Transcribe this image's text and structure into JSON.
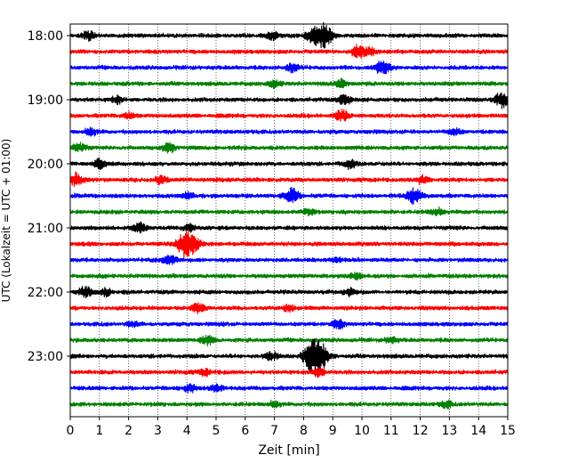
{
  "chart_data": {
    "type": "line",
    "title": "",
    "xlabel": "Zeit  [min]",
    "ylabel": "UTC (Lokalzeit = UTC + 01:00)",
    "xlim": [
      0,
      15
    ],
    "x_ticks": [
      "0",
      "1",
      "2",
      "3",
      "4",
      "5",
      "6",
      "7",
      "8",
      "9",
      "10",
      "11",
      "12",
      "13",
      "14",
      "15"
    ],
    "y_tick_labels": [
      "18:00",
      "19:00",
      "20:00",
      "21:00",
      "22:00",
      "23:00"
    ],
    "grid": "vertical dotted",
    "trace_minutes": 15,
    "colors": [
      "#000000",
      "#ff0000",
      "#0000ff",
      "#008000"
    ],
    "series": [
      {
        "label": "18:00",
        "color": "#000000",
        "events": [
          {
            "t": 8.7,
            "amp": 1.4
          },
          {
            "t": 8.3,
            "amp": 0.8
          },
          {
            "t": 0.6,
            "amp": 0.5
          },
          {
            "t": 6.9,
            "amp": 0.5
          }
        ]
      },
      {
        "label": "18:15",
        "color": "#ff0000",
        "events": [
          {
            "t": 9.9,
            "amp": 0.8
          },
          {
            "t": 10.3,
            "amp": 0.4
          }
        ]
      },
      {
        "label": "18:30",
        "color": "#0000ff",
        "events": [
          {
            "t": 10.7,
            "amp": 0.9
          },
          {
            "t": 7.6,
            "amp": 0.5
          }
        ]
      },
      {
        "label": "18:45",
        "color": "#008000",
        "events": [
          {
            "t": 7.0,
            "amp": 0.4
          },
          {
            "t": 9.3,
            "amp": 0.4
          }
        ]
      },
      {
        "label": "19:00",
        "color": "#000000",
        "events": [
          {
            "t": 14.8,
            "amp": 0.9
          },
          {
            "t": 9.4,
            "amp": 0.6
          },
          {
            "t": 1.6,
            "amp": 0.4
          }
        ]
      },
      {
        "label": "19:15",
        "color": "#ff0000",
        "events": [
          {
            "t": 9.3,
            "amp": 0.7
          },
          {
            "t": 2.0,
            "amp": 0.4
          }
        ]
      },
      {
        "label": "19:30",
        "color": "#0000ff",
        "events": [
          {
            "t": 0.7,
            "amp": 0.4
          },
          {
            "t": 13.2,
            "amp": 0.4
          }
        ]
      },
      {
        "label": "19:45",
        "color": "#008000",
        "events": [
          {
            "t": 0.3,
            "amp": 0.5
          },
          {
            "t": 3.4,
            "amp": 0.5
          }
        ]
      },
      {
        "label": "20:00",
        "color": "#000000",
        "events": [
          {
            "t": 1.0,
            "amp": 0.5
          },
          {
            "t": 9.6,
            "amp": 0.5
          }
        ]
      },
      {
        "label": "20:15",
        "color": "#ff0000",
        "events": [
          {
            "t": 0.2,
            "amp": 0.8
          },
          {
            "t": 3.1,
            "amp": 0.5
          },
          {
            "t": 12.1,
            "amp": 0.5
          }
        ]
      },
      {
        "label": "20:30",
        "color": "#0000ff",
        "events": [
          {
            "t": 7.6,
            "amp": 0.9
          },
          {
            "t": 11.8,
            "amp": 0.9
          },
          {
            "t": 4.0,
            "amp": 0.4
          }
        ]
      },
      {
        "label": "20:45",
        "color": "#008000",
        "events": [
          {
            "t": 8.2,
            "amp": 0.4
          },
          {
            "t": 12.6,
            "amp": 0.4
          }
        ]
      },
      {
        "label": "21:00",
        "color": "#000000",
        "events": [
          {
            "t": 2.4,
            "amp": 0.5
          },
          {
            "t": 4.1,
            "amp": 0.4
          }
        ]
      },
      {
        "label": "21:15",
        "color": "#ff0000",
        "events": [
          {
            "t": 3.9,
            "amp": 1.3
          },
          {
            "t": 4.2,
            "amp": 1.0
          }
        ]
      },
      {
        "label": "21:30",
        "color": "#0000ff",
        "events": [
          {
            "t": 3.4,
            "amp": 0.6
          },
          {
            "t": 9.1,
            "amp": 0.3
          }
        ]
      },
      {
        "label": "21:45",
        "color": "#008000",
        "events": [
          {
            "t": 9.8,
            "amp": 0.4
          }
        ]
      },
      {
        "label": "22:00",
        "color": "#000000",
        "events": [
          {
            "t": 0.5,
            "amp": 0.6
          },
          {
            "t": 1.2,
            "amp": 0.5
          },
          {
            "t": 9.6,
            "amp": 0.4
          }
        ]
      },
      {
        "label": "22:15",
        "color": "#ff0000",
        "events": [
          {
            "t": 4.4,
            "amp": 0.6
          },
          {
            "t": 7.5,
            "amp": 0.4
          }
        ]
      },
      {
        "label": "22:30",
        "color": "#0000ff",
        "events": [
          {
            "t": 9.2,
            "amp": 0.5
          },
          {
            "t": 2.1,
            "amp": 0.3
          }
        ]
      },
      {
        "label": "22:45",
        "color": "#008000",
        "events": [
          {
            "t": 4.7,
            "amp": 0.5
          },
          {
            "t": 11.0,
            "amp": 0.3
          }
        ]
      },
      {
        "label": "23:00",
        "color": "#000000",
        "events": [
          {
            "t": 8.5,
            "amp": 2.0
          },
          {
            "t": 8.2,
            "amp": 1.0
          },
          {
            "t": 6.9,
            "amp": 0.5
          }
        ]
      },
      {
        "label": "23:15",
        "color": "#ff0000",
        "events": [
          {
            "t": 8.5,
            "amp": 0.6
          },
          {
            "t": 4.6,
            "amp": 0.4
          }
        ]
      },
      {
        "label": "23:30",
        "color": "#0000ff",
        "events": [
          {
            "t": 4.1,
            "amp": 0.5
          },
          {
            "t": 5.0,
            "amp": 0.4
          }
        ]
      },
      {
        "label": "23:45",
        "color": "#008000",
        "events": [
          {
            "t": 12.9,
            "amp": 0.4
          },
          {
            "t": 7.0,
            "amp": 0.3
          }
        ]
      }
    ]
  }
}
